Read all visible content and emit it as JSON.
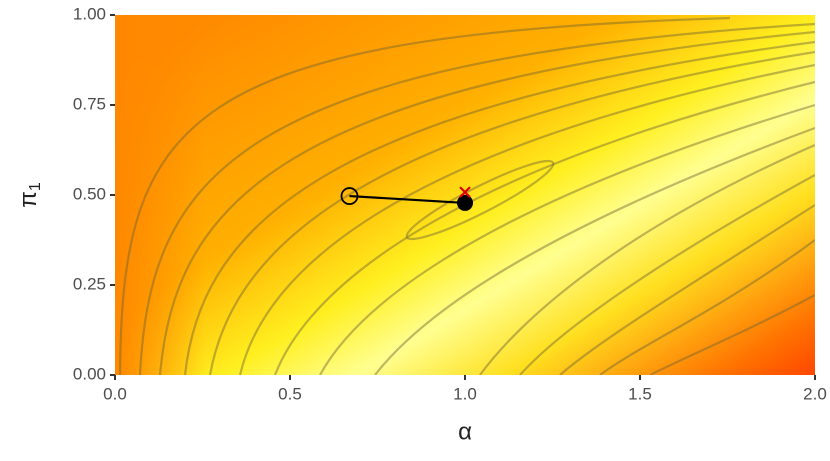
{
  "chart_data": {
    "type": "path",
    "x_label": "α",
    "y_label": "π",
    "y_label_subscript": "1",
    "xlim": [
      0,
      2
    ],
    "ylim": [
      0,
      1
    ],
    "xticks": [
      {
        "value": 0,
        "label": "0.0"
      },
      {
        "value": 0.5,
        "label": "0.5"
      },
      {
        "value": 1,
        "label": "1.0"
      },
      {
        "value": 1.5,
        "label": "1.5"
      },
      {
        "value": 2,
        "label": "2.0"
      }
    ],
    "yticks": [
      {
        "value": 0,
        "label": "0.00"
      },
      {
        "value": 0.25,
        "label": "0.25"
      },
      {
        "value": 0.5,
        "label": "0.50"
      },
      {
        "value": 0.75,
        "label": "0.75"
      },
      {
        "value": 1,
        "label": "1.00"
      }
    ],
    "path": {
      "x": [
        0.67,
        1.0
      ],
      "y": [
        0.497,
        0.478
      ],
      "color": "#000000"
    },
    "optimum": {
      "x": 1.0,
      "y": 0.508,
      "color": "#e00000"
    }
  }
}
